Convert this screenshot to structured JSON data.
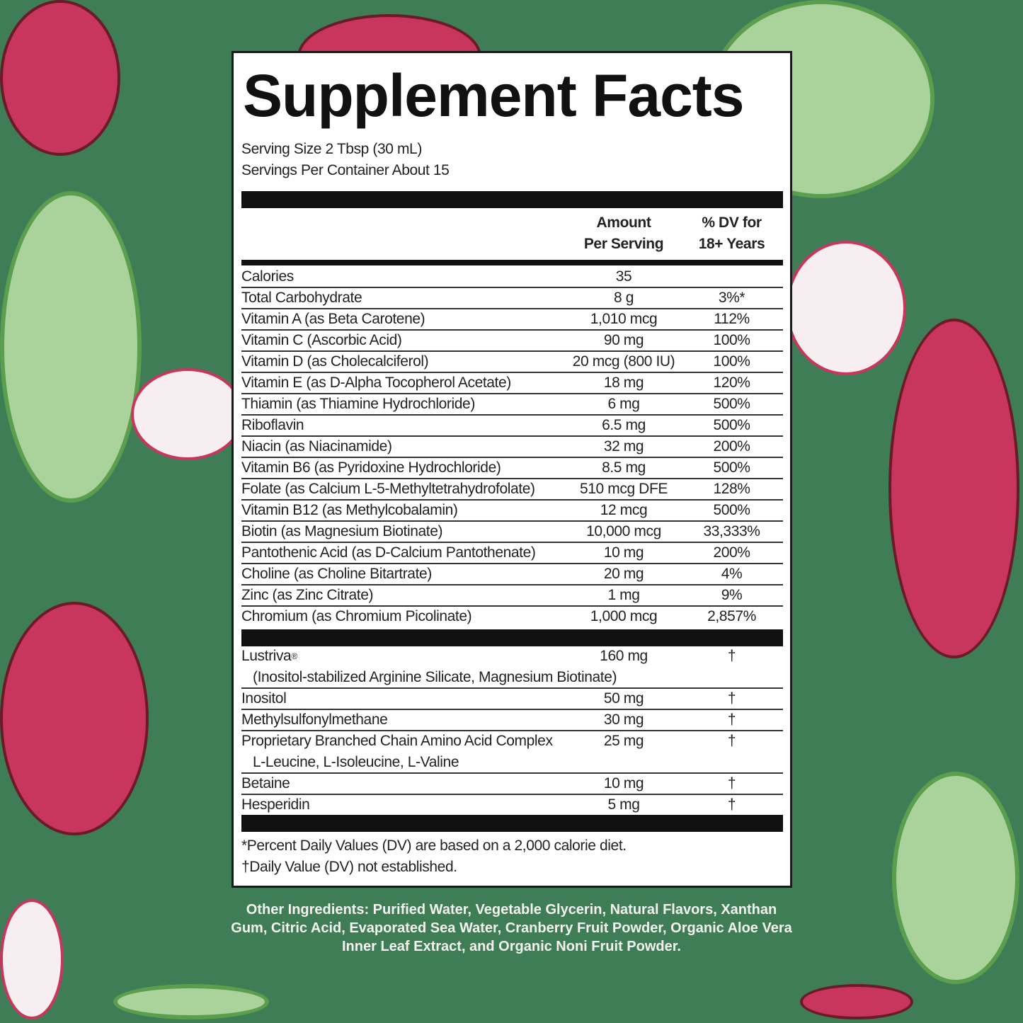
{
  "title": "Supplement Facts",
  "serving_size": "Serving Size 2 Tbsp (30 mL)",
  "servings_per_container": "Servings Per Container About 15",
  "header": {
    "amount_line1": "Amount",
    "amount_line2": "Per Serving",
    "dv_line1": "% DV for",
    "dv_line2": "18+ Years"
  },
  "rows": [
    {
      "name": "Calories",
      "amount": "35",
      "dv": ""
    },
    {
      "name": "Total Carbohydrate",
      "amount": "8 g",
      "dv": "3%*"
    },
    {
      "name": "Vitamin A (as Beta Carotene)",
      "amount": "1,010 mcg",
      "dv": "112%"
    },
    {
      "name": "Vitamin C (Ascorbic Acid)",
      "amount": "90 mg",
      "dv": "100%"
    },
    {
      "name": "Vitamin D (as Cholecalciferol)",
      "amount": "20 mcg (800 IU)",
      "dv": "100%"
    },
    {
      "name": "Vitamin E (as D-Alpha Tocopherol Acetate)",
      "amount": "18 mg",
      "dv": "120%"
    },
    {
      "name": "Thiamin (as Thiamine Hydrochloride)",
      "amount": "6 mg",
      "dv": "500%"
    },
    {
      "name": "Riboflavin",
      "amount": "6.5 mg",
      "dv": "500%"
    },
    {
      "name": "Niacin (as Niacinamide)",
      "amount": "32 mg",
      "dv": "200%"
    },
    {
      "name": "Vitamin B6 (as Pyridoxine Hydrochloride)",
      "amount": "8.5 mg",
      "dv": "500%"
    },
    {
      "name": "Folate (as Calcium L-5-Methyltetrahydrofolate)",
      "amount": "510 mcg DFE",
      "dv": "128%"
    },
    {
      "name": "Vitamin B12 (as Methylcobalamin)",
      "amount": "12 mcg",
      "dv": "500%"
    },
    {
      "name": "Biotin (as Magnesium Biotinate)",
      "amount": "10,000 mcg",
      "dv": "33,333%"
    },
    {
      "name": "Pantothenic Acid (as D-Calcium Pantothenate)",
      "amount": "10 mg",
      "dv": "200%"
    },
    {
      "name": "Choline (as Choline Bitartrate)",
      "amount": "20 mg",
      "dv": "4%"
    },
    {
      "name": "Zinc (as Zinc Citrate)",
      "amount": "1 mg",
      "dv": "9%"
    },
    {
      "name": "Chromium (as Chromium Picolinate)",
      "amount": "1,000 mcg",
      "dv": "2,857%"
    }
  ],
  "other_rows": [
    {
      "name": "Lustriva",
      "mark": "®",
      "sub": "(Inositol-stabilized Arginine Silicate, Magnesium Biotinate)",
      "amount": "160 mg",
      "dv": "†"
    },
    {
      "name": "Inositol",
      "amount": "50 mg",
      "dv": "†"
    },
    {
      "name": "Methylsulfonylmethane",
      "amount": "30 mg",
      "dv": "†"
    },
    {
      "name": "Proprietary Branched Chain Amino Acid Complex",
      "sub": "L-Leucine, L-Isoleucine, L-Valine",
      "amount": "25 mg",
      "dv": "†"
    },
    {
      "name": "Betaine",
      "amount": "10 mg",
      "dv": "†"
    },
    {
      "name": "Hesperidin",
      "amount": "5 mg",
      "dv": "†"
    }
  ],
  "footnote1": "*Percent Daily Values (DV) are based on a 2,000 calorie diet.",
  "footnote2": "†Daily Value (DV) not established.",
  "other_ingredients": "Other Ingredients: Purified Water, Vegetable Glycerin, Natural Flavors, Xanthan Gum, Citric Acid, Evaporated Sea Water, Cranberry Fruit Powder, Organic Aloe Vera Inner Leaf Extract, and Organic Noni Fruit Powder.",
  "colors": {
    "background": "#3e7d55",
    "label": "#ffffff",
    "text": "#222222"
  }
}
